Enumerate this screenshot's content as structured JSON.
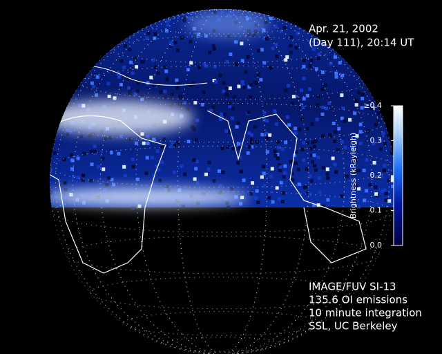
{
  "header": {
    "date": "Apr. 21, 2002",
    "time": "(Day 111), 20:14 UT"
  },
  "colorbar": {
    "label": "Brightness (kRayleigh)",
    "range": [
      0,
      0.4
    ],
    "ticks": [
      {
        "value": 0,
        "label": "0.0"
      },
      0.1,
      0.2,
      0.3,
      {
        "value": 0.4,
        "label": "≥0.4"
      }
    ]
  },
  "footer": {
    "lines": [
      "IMAGE/FUV SI-13",
      "135.6 OI emissions",
      "10 minute integration",
      "SSL, UC Berkeley"
    ]
  }
}
